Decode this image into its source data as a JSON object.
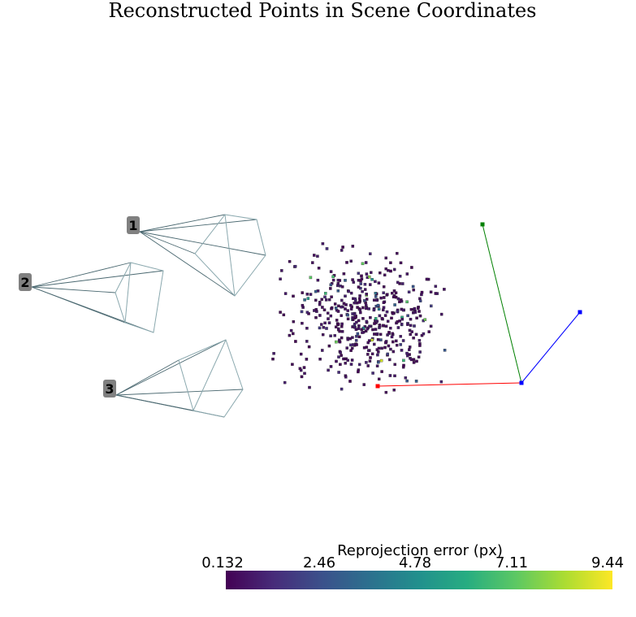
{
  "chart_data": {
    "type": "scatter",
    "title": "Reconstructed Points in Scene Coordinates",
    "colorbar": {
      "title": "Reprojection error (px)",
      "ticks": [
        "0.132",
        "2.46",
        "4.78",
        "7.11",
        "9.44"
      ],
      "range": [
        0.132,
        9.44
      ],
      "colormap": "viridis"
    },
    "cameras": [
      "1",
      "2",
      "3"
    ],
    "axes_triad": {
      "x_color": "#ff0000",
      "y_color": "#008000",
      "z_color": "#0000ff"
    },
    "point_count": 480,
    "point_error_distribution": "mostly below 1.5 px with a few outliers up to about 9 px"
  }
}
